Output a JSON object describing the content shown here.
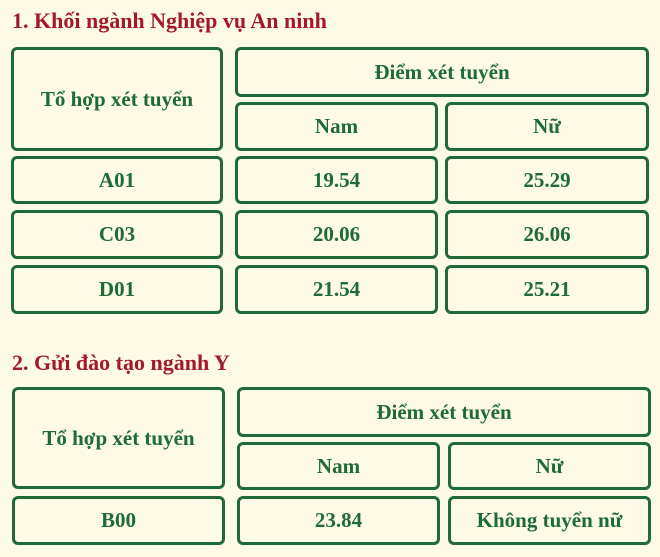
{
  "sections": [
    {
      "title": "1. Khối ngành Nghiệp vụ An ninh",
      "header": {
        "combo": "Tổ hợp xét tuyển",
        "score": "Điểm xét tuyển",
        "male": "Nam",
        "female": "Nữ"
      },
      "rows": [
        {
          "combo": "A01",
          "male": "19.54",
          "female": "25.29"
        },
        {
          "combo": "C03",
          "male": "20.06",
          "female": "26.06"
        },
        {
          "combo": "D01",
          "male": "21.54",
          "female": "25.21"
        }
      ]
    },
    {
      "title": "2. Gửi đào tạo ngành Y",
      "header": {
        "combo": "Tổ hợp xét tuyển",
        "score": "Điểm xét tuyển",
        "male": "Nam",
        "female": "Nữ"
      },
      "rows": [
        {
          "combo": "B00",
          "male": "23.84",
          "female": "Không tuyển nữ"
        }
      ]
    }
  ],
  "colors": {
    "title": "#a3192b",
    "table": "#1e6b36",
    "background": "#fdfae5"
  }
}
